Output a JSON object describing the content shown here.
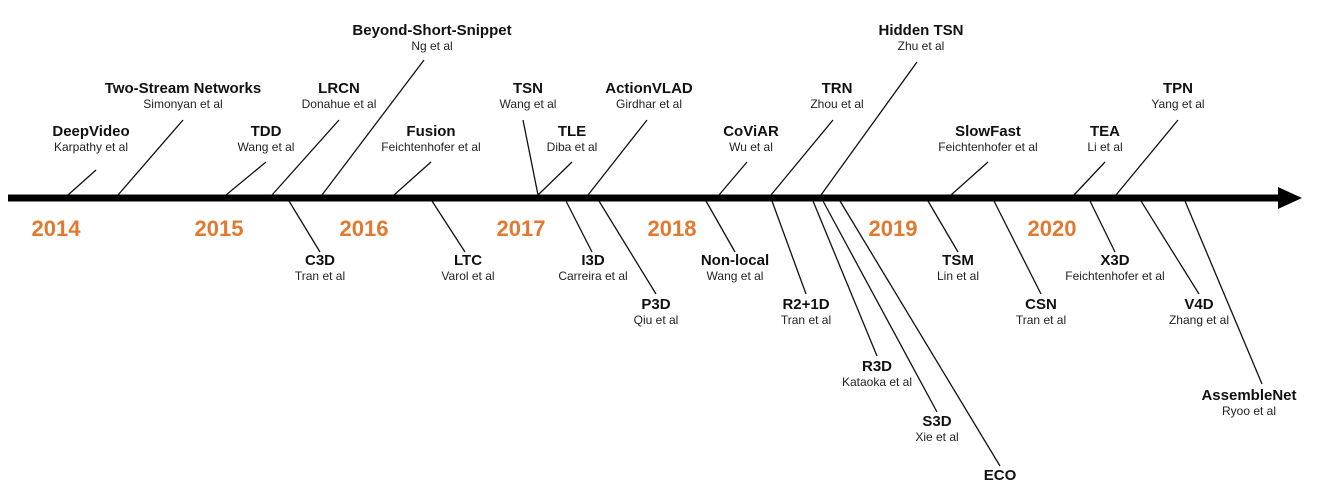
{
  "colors": {
    "axis": "#000000",
    "year": "#e2792e",
    "text": "#111111"
  },
  "years": [
    "2014",
    "2015",
    "2016",
    "2017",
    "2018",
    "2019",
    "2020"
  ],
  "above": [
    {
      "name": "DeepVideo",
      "authors": "Karpathy et al"
    },
    {
      "name": "Two-Stream Networks",
      "authors": "Simonyan et al"
    },
    {
      "name": "TDD",
      "authors": "Wang et al"
    },
    {
      "name": "LRCN",
      "authors": "Donahue et al"
    },
    {
      "name": "Beyond-Short-Snippet",
      "authors": "Ng et al"
    },
    {
      "name": "Fusion",
      "authors": "Feichtenhofer et al"
    },
    {
      "name": "TSN",
      "authors": "Wang et al"
    },
    {
      "name": "TLE",
      "authors": "Diba et al"
    },
    {
      "name": "ActionVLAD",
      "authors": "Girdhar et al"
    },
    {
      "name": "CoViAR",
      "authors": "Wu et al"
    },
    {
      "name": "TRN",
      "authors": "Zhou et al"
    },
    {
      "name": "Hidden TSN",
      "authors": "Zhu et al"
    },
    {
      "name": "SlowFast",
      "authors": "Feichtenhofer et al"
    },
    {
      "name": "TEA",
      "authors": "Li et al"
    },
    {
      "name": "TPN",
      "authors": "Yang et al"
    }
  ],
  "below": [
    {
      "name": "C3D",
      "authors": "Tran et al"
    },
    {
      "name": "LTC",
      "authors": "Varol et al"
    },
    {
      "name": "I3D",
      "authors": "Carreira et al"
    },
    {
      "name": "P3D",
      "authors": "Qiu et al"
    },
    {
      "name": "Non-local",
      "authors": "Wang et al"
    },
    {
      "name": "R2+1D",
      "authors": "Tran et al"
    },
    {
      "name": "R3D",
      "authors": "Kataoka et al"
    },
    {
      "name": "S3D",
      "authors": "Xie et al"
    },
    {
      "name": "ECO",
      "authors": ""
    },
    {
      "name": "TSM",
      "authors": "Lin et al"
    },
    {
      "name": "CSN",
      "authors": "Tran et al"
    },
    {
      "name": "X3D",
      "authors": "Feichtenhofer et al"
    },
    {
      "name": "V4D",
      "authors": "Zhang et al"
    },
    {
      "name": "AssembleNet",
      "authors": "Ryoo et al"
    }
  ]
}
